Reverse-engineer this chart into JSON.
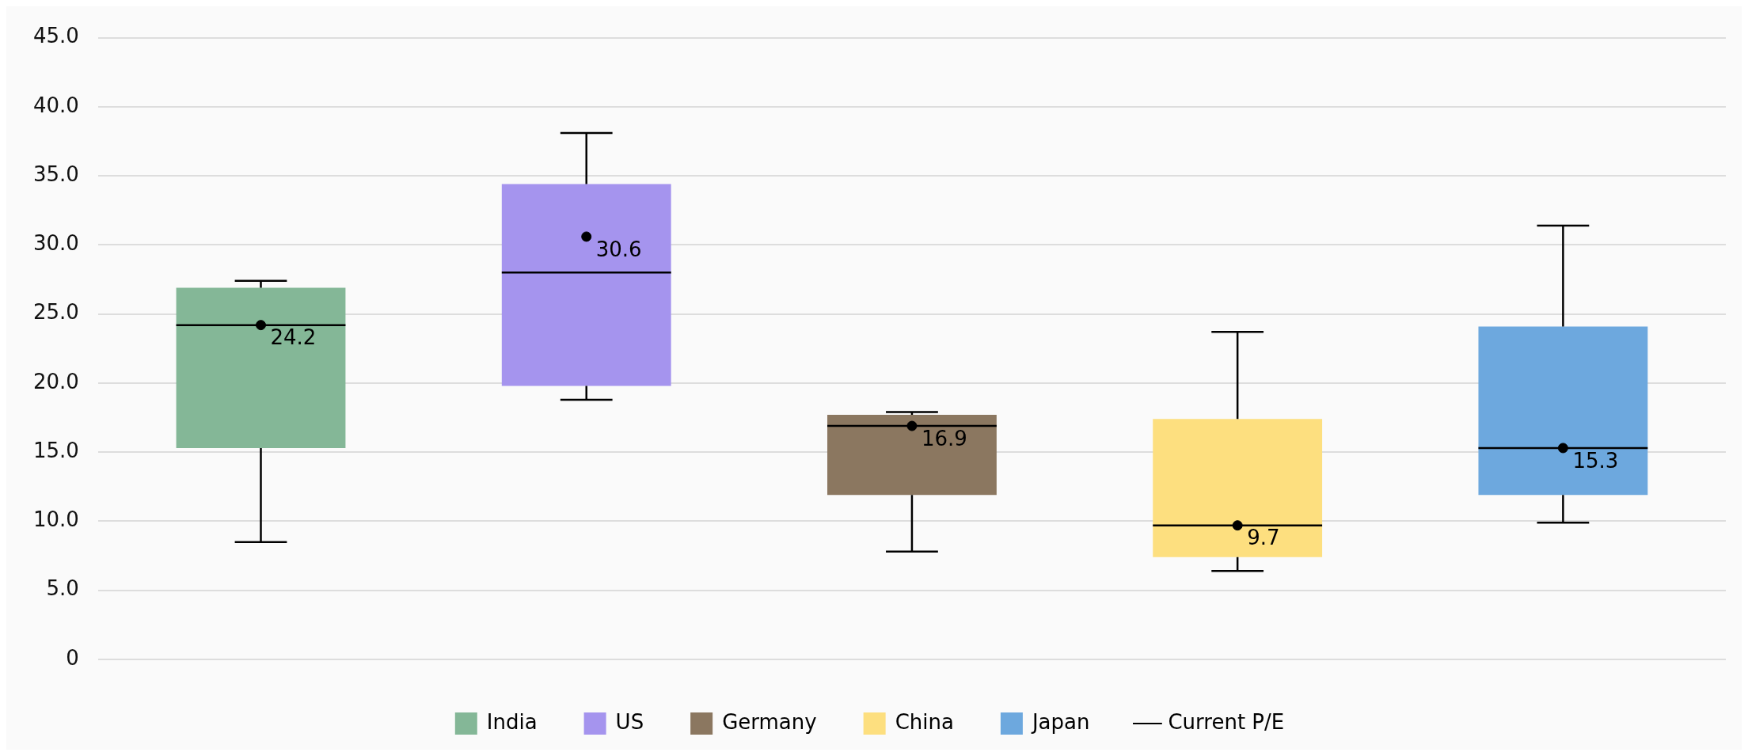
{
  "chart_data": {
    "type": "box",
    "categories": [
      null,
      null,
      null,
      null,
      null
    ],
    "series": [
      {
        "name": "India",
        "color": "#84b797",
        "boxes": [
          {
            "low": 8.5,
            "q1": 15.3,
            "median": 24.2,
            "q3": 26.9,
            "high": 27.4
          },
          null,
          null,
          null,
          null
        ]
      },
      {
        "name": "US",
        "color": "#a594ee",
        "boxes": [
          null,
          {
            "low": 18.8,
            "q1": 19.8,
            "median": 28.0,
            "q3": 34.4,
            "high": 38.1
          },
          null,
          null,
          null
        ]
      },
      {
        "name": "Germany",
        "color": "#8b7760",
        "boxes": [
          null,
          null,
          {
            "low": 7.8,
            "q1": 11.9,
            "median": 16.9,
            "q3": 17.7,
            "high": 17.9
          },
          null,
          null
        ]
      },
      {
        "name": "China",
        "color": "#fddf7f",
        "boxes": [
          null,
          null,
          null,
          {
            "low": 6.4,
            "q1": 7.4,
            "median": 9.7,
            "q3": 17.4,
            "high": 23.7
          },
          null
        ]
      },
      {
        "name": "Japan",
        "color": "#6da8de",
        "boxes": [
          null,
          null,
          null,
          null,
          {
            "low": 9.9,
            "q1": 11.9,
            "median": 15.3,
            "q3": 24.1,
            "high": 31.4
          }
        ]
      },
      {
        "name": "Current P/E",
        "color": "#000000",
        "type": "scatter",
        "marker": "circle",
        "values": [
          24.2,
          30.6,
          16.9,
          9.7,
          15.3
        ],
        "data_labels": true
      }
    ],
    "ylim": [
      0,
      45
    ],
    "yticks": [
      0,
      {
        "value": 5,
        "label": "5.0"
      },
      {
        "value": 10,
        "label": "10.0"
      },
      {
        "value": 15,
        "label": "15.0"
      },
      {
        "value": 20,
        "label": "20.0"
      },
      {
        "value": 25,
        "label": "25.0"
      },
      {
        "value": 30,
        "label": "30.0"
      },
      {
        "value": 35,
        "label": "35.0"
      },
      {
        "value": 40,
        "label": "40.0"
      },
      {
        "value": 45,
        "label": "45.0"
      }
    ],
    "grid": "y",
    "legend": "bottom",
    "tick_labels": "y"
  }
}
